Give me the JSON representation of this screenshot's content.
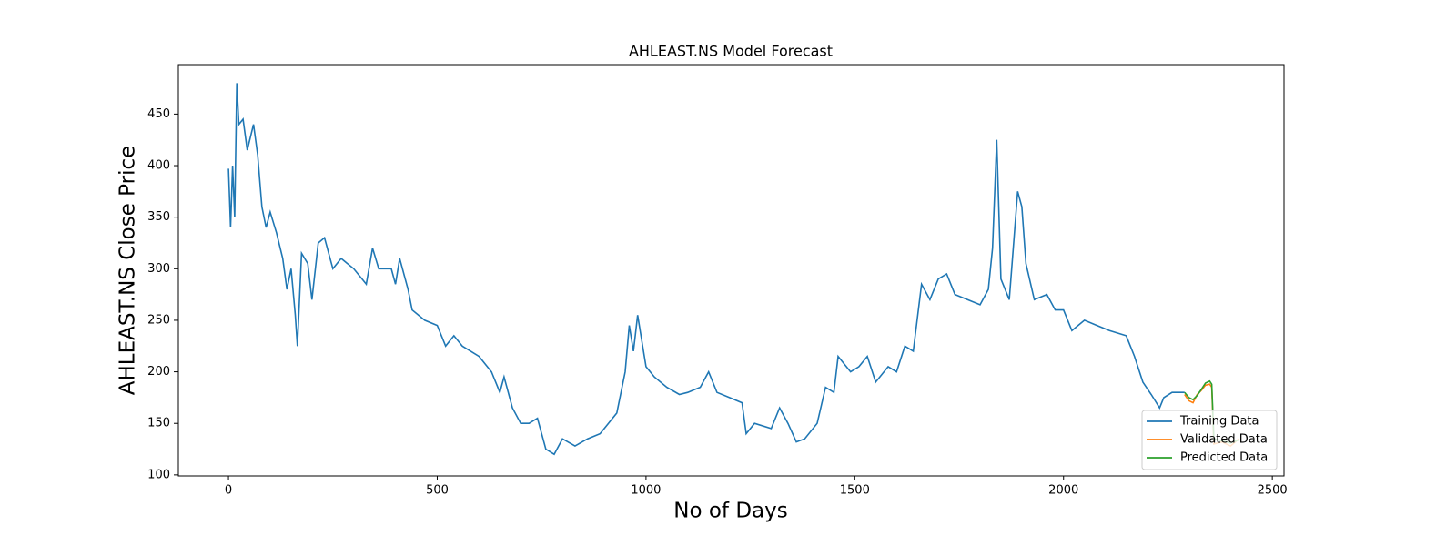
{
  "chart_data": {
    "type": "line",
    "title": "AHLEAST.NS Model Forecast",
    "x_label": "No of Days",
    "y_label": "AHLEAST.NS Close Price",
    "xlim": [
      -120,
      2528
    ],
    "ylim": [
      99,
      498
    ],
    "xticks": [
      0,
      500,
      1000,
      1500,
      2000,
      2500
    ],
    "yticks": [
      100,
      150,
      200,
      250,
      300,
      350,
      400,
      450
    ],
    "legend_position": "lower right",
    "series": [
      {
        "name": "Training Data",
        "color": "#1f77b4",
        "x": [
          0,
          5,
          10,
          15,
          20,
          25,
          35,
          45,
          60,
          70,
          80,
          90,
          100,
          115,
          130,
          140,
          150,
          160,
          165,
          175,
          190,
          200,
          215,
          230,
          250,
          270,
          300,
          330,
          345,
          360,
          390,
          400,
          410,
          430,
          440,
          470,
          500,
          520,
          540,
          560,
          600,
          630,
          650,
          660,
          680,
          700,
          720,
          740,
          760,
          780,
          800,
          830,
          860,
          890,
          910,
          930,
          950,
          960,
          970,
          980,
          1000,
          1020,
          1050,
          1080,
          1100,
          1130,
          1150,
          1170,
          1200,
          1230,
          1240,
          1260,
          1300,
          1320,
          1340,
          1360,
          1380,
          1410,
          1430,
          1450,
          1460,
          1490,
          1510,
          1530,
          1550,
          1580,
          1600,
          1620,
          1640,
          1660,
          1680,
          1700,
          1720,
          1740,
          1770,
          1800,
          1820,
          1830,
          1840,
          1850,
          1870,
          1890,
          1900,
          1910,
          1930,
          1960,
          1980,
          2000,
          2020,
          2050,
          2080,
          2110,
          2150,
          2170,
          2190,
          2210,
          2230,
          2240,
          2260,
          2290
        ],
        "values": [
          397,
          340,
          400,
          350,
          480,
          440,
          445,
          415,
          440,
          410,
          360,
          340,
          355,
          335,
          310,
          280,
          300,
          255,
          225,
          315,
          305,
          270,
          325,
          330,
          300,
          310,
          300,
          285,
          320,
          300,
          300,
          285,
          310,
          280,
          260,
          250,
          245,
          225,
          235,
          225,
          215,
          200,
          180,
          195,
          165,
          150,
          150,
          155,
          125,
          120,
          135,
          128,
          135,
          140,
          150,
          160,
          200,
          245,
          220,
          255,
          205,
          195,
          185,
          178,
          180,
          185,
          200,
          180,
          175,
          170,
          140,
          150,
          145,
          165,
          150,
          132,
          135,
          150,
          185,
          180,
          215,
          200,
          205,
          215,
          190,
          205,
          200,
          225,
          220,
          285,
          270,
          290,
          295,
          275,
          270,
          265,
          280,
          320,
          425,
          290,
          270,
          375,
          360,
          305,
          270,
          275,
          260,
          260,
          240,
          250,
          245,
          240,
          235,
          215,
          190,
          178,
          165,
          175,
          180,
          180
        ]
      },
      {
        "name": "Validated Data",
        "color": "#ff7f0e",
        "x": [
          2290,
          2300,
          2310,
          2320,
          2330,
          2340,
          2350,
          2355,
          2360,
          2380,
          2400,
          2420
        ],
        "values": [
          178,
          172,
          170,
          178,
          182,
          187,
          188,
          185,
          130,
          132,
          128,
          135
        ]
      },
      {
        "name": "Predicted Data",
        "color": "#2ca02c",
        "x": [
          2290,
          2300,
          2310,
          2320,
          2330,
          2340,
          2350,
          2355,
          2360,
          2380,
          2400,
          2420
        ],
        "values": [
          180,
          175,
          173,
          177,
          183,
          189,
          191,
          188,
          135,
          133,
          131,
          134
        ]
      }
    ]
  }
}
